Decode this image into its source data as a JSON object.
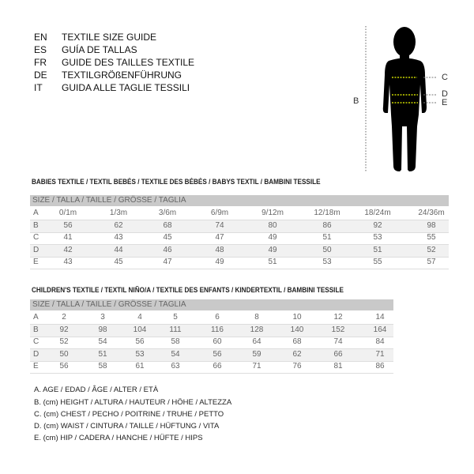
{
  "languages": [
    {
      "code": "EN",
      "text": "TEXTILE SIZE GUIDE"
    },
    {
      "code": "ES",
      "text": "GUÍA DE TALLAS"
    },
    {
      "code": "FR",
      "text": "GUIDE DES TAILLES TEXTILE"
    },
    {
      "code": "DE",
      "text": "TEXTILGRÖßENFÜHRUNG"
    },
    {
      "code": "IT",
      "text": "GUIDA ALLE TAGLIE TESSILI"
    }
  ],
  "figure": {
    "labels": {
      "b": "B",
      "c": "C",
      "d": "D",
      "e": "E"
    },
    "measure_line_color": "#c8d400"
  },
  "babies": {
    "title": "BABIES TEXTILE / TEXTIL BEBÉS / TEXTILE DES BÉBÉS / BABYS TEXTIL  / BAMBINI TESSILE",
    "header": "SIZE / TALLA / TAILLE / GRÖSSE / TAGLIA",
    "rows": [
      {
        "label": "A",
        "values": [
          "0/1m",
          "1/3m",
          "3/6m",
          "6/9m",
          "9/12m",
          "12/18m",
          "18/24m",
          "24/36m"
        ]
      },
      {
        "label": "B",
        "values": [
          "56",
          "62",
          "68",
          "74",
          "80",
          "86",
          "92",
          "98"
        ]
      },
      {
        "label": "C",
        "values": [
          "41",
          "43",
          "45",
          "47",
          "49",
          "51",
          "53",
          "55"
        ]
      },
      {
        "label": "D",
        "values": [
          "42",
          "44",
          "46",
          "48",
          "49",
          "50",
          "51",
          "52"
        ]
      },
      {
        "label": "E",
        "values": [
          "43",
          "45",
          "47",
          "49",
          "51",
          "53",
          "55",
          "57"
        ]
      }
    ]
  },
  "children": {
    "title": "CHILDREN'S TEXTILE / TEXTIL NIÑO/A / TEXTILE DES ENFANTS / KINDERTEXTIL / BAMBINI TESSILE",
    "header": "SIZE / TALLA / TAILLE / GRÖSSE / TAGLIA",
    "rows": [
      {
        "label": "A",
        "values": [
          "2",
          "3",
          "4",
          "5",
          "6",
          "8",
          "10",
          "12",
          "14"
        ]
      },
      {
        "label": "B",
        "values": [
          "92",
          "98",
          "104",
          "111",
          "116",
          "128",
          "140",
          "152",
          "164"
        ]
      },
      {
        "label": "C",
        "values": [
          "52",
          "54",
          "56",
          "58",
          "60",
          "64",
          "68",
          "74",
          "84"
        ]
      },
      {
        "label": "D",
        "values": [
          "50",
          "51",
          "53",
          "54",
          "56",
          "59",
          "62",
          "66",
          "71"
        ]
      },
      {
        "label": "E",
        "values": [
          "56",
          "58",
          "61",
          "63",
          "66",
          "71",
          "76",
          "81",
          "86"
        ]
      }
    ]
  },
  "legend": [
    "A. AGE / EDAD / ÂGE / ALTER / ETÀ",
    "B. (cm) HEIGHT / ALTURA / HAUTEUR / HÖHE / ALTEZZA",
    "C. (cm) CHEST / PECHO / POITRINE / TRUHE / PETTO",
    "D. (cm) WAIST / CINTURA / TAILLE / HÜFTUNG / VITA",
    "E. (cm) HIP / CADERA / HANCHE / HÜFTE / HIPS"
  ]
}
